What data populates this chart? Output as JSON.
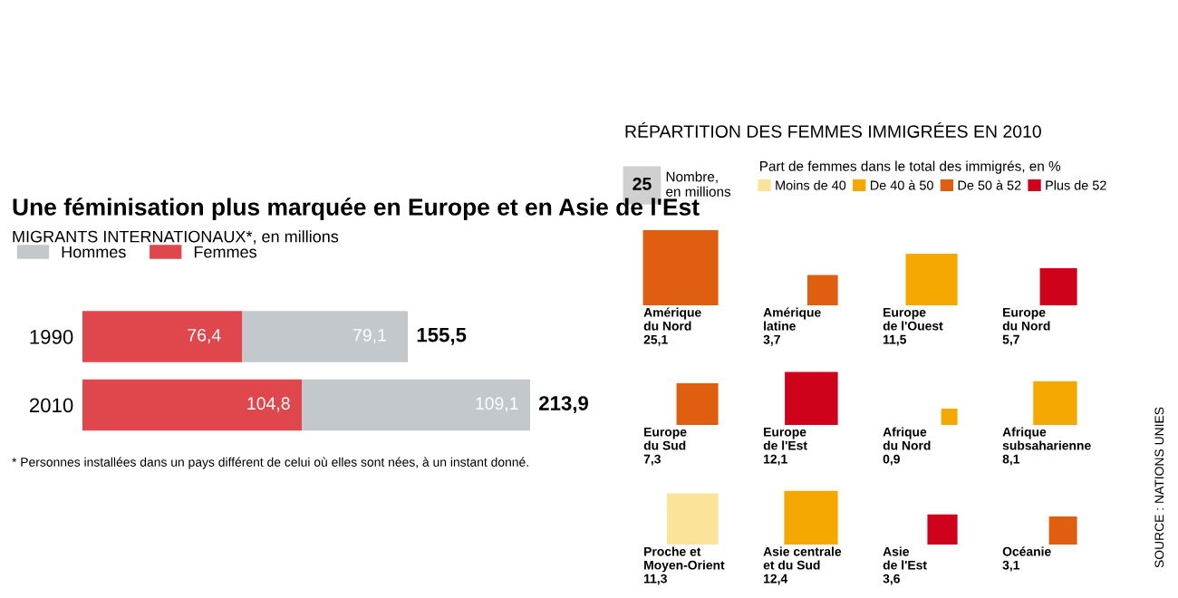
{
  "chart_data": [
    {
      "type": "bar",
      "orientation": "horizontal",
      "stacked": true,
      "title": "Une féminisation plus marquée en Europe et en Asie de l'Est",
      "subtitle": "MIGRANTS INTERNATIONAUX*, en millions",
      "categories": [
        "1990",
        "2010"
      ],
      "legend": "top left",
      "series": [
        {
          "name": "Femmes",
          "color": "#e0474c",
          "values": [
            76.4,
            104.8
          ],
          "value_labels": [
            "76,4",
            "104,8"
          ]
        },
        {
          "name": "Hommes",
          "color": "#c3c8cc",
          "values": [
            79.1,
            109.1
          ],
          "value_labels": [
            "79,1",
            "109,1"
          ]
        }
      ],
      "totals": [
        "155,5",
        "213,9"
      ],
      "annotations": [
        "* Personnes installées dans un pays différent de celui où elles sont nées, à un instant donné."
      ]
    },
    {
      "type": "other",
      "title": "RÉPARTITION DES FEMMES IMMIGRÉES EN 2010",
      "legend_title": "Part de femmes dans le total des immigrés, en %",
      "legend": "top",
      "categories": [
        "Amérique\ndu Nord",
        "Amérique\nlatine",
        "Europe\nde l'Ouest",
        "Europe\ndu Nord",
        "Europe\ndu Sud",
        "Europe\nde l'Est",
        "Afrique\ndu Nord",
        "Afrique\nsubsaharienne",
        "Proche et\nMoyen-Orient",
        "Asie centrale\net du Sud",
        "Asie\nde l'Est",
        "Océanie"
      ],
      "series": [
        {
          "name": "Moins de 40",
          "color": "#fbe39a",
          "values": [
            null,
            null,
            null,
            null,
            null,
            null,
            null,
            null,
            11.3,
            null,
            null,
            null
          ],
          "value_labels": [
            null,
            null,
            null,
            null,
            null,
            null,
            null,
            null,
            "11,3",
            null,
            null,
            null
          ]
        },
        {
          "name": "De 40 à 50",
          "color": "#f5a800",
          "values": [
            null,
            null,
            11.5,
            null,
            null,
            null,
            0.9,
            8.1,
            null,
            12.4,
            null,
            null
          ],
          "value_labels": [
            null,
            null,
            "11,5",
            null,
            null,
            null,
            "0,9",
            "8,1",
            null,
            "12,4",
            null,
            null
          ]
        },
        {
          "name": "De 50 à 52",
          "color": "#e05e10",
          "values": [
            25.1,
            3.7,
            null,
            null,
            7.3,
            null,
            null,
            null,
            null,
            null,
            null,
            3.1
          ],
          "value_labels": [
            "25,1",
            "3,7",
            null,
            null,
            "7,3",
            null,
            null,
            null,
            null,
            null,
            null,
            "3,1"
          ]
        },
        {
          "name": "Plus de 52",
          "color": "#d0021b",
          "values": [
            null,
            null,
            null,
            5.7,
            null,
            12.1,
            null,
            null,
            null,
            null,
            3.6,
            null
          ],
          "value_labels": [
            null,
            null,
            null,
            "5,7",
            null,
            "12,1",
            null,
            null,
            null,
            null,
            "3,6",
            null
          ]
        }
      ],
      "annotations": [
        "25",
        "Nombre,\nen millions",
        "SOURCE : NATIONS UNIES"
      ]
    }
  ]
}
